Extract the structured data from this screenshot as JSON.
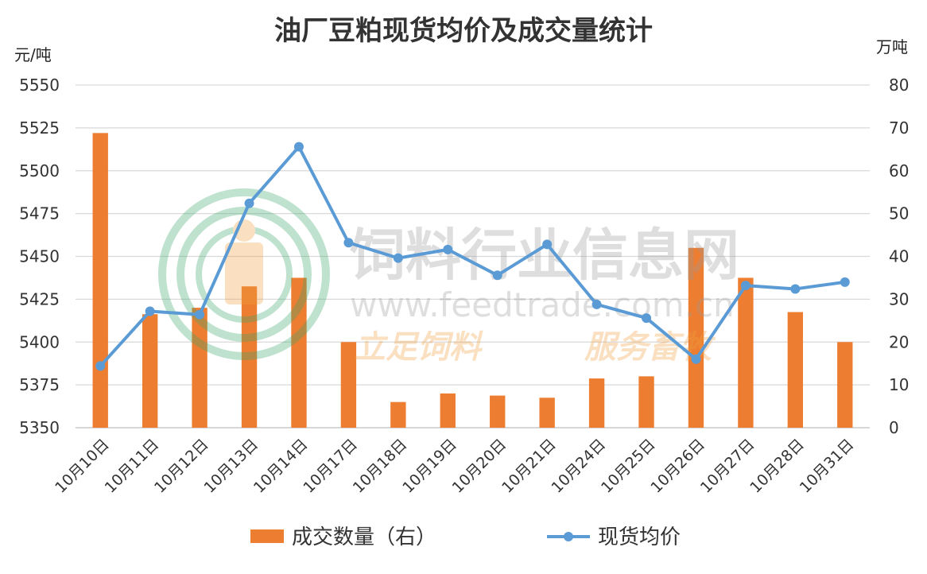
{
  "chart_data": {
    "type": "bar+line",
    "title": "油厂豆粕现货均价及成交量统计",
    "left_axis": {
      "unit": "元/吨",
      "min": 5350,
      "max": 5550,
      "ticks": [
        5550,
        5525,
        5500,
        5475,
        5450,
        5425,
        5400,
        5375,
        5350
      ]
    },
    "right_axis": {
      "unit": "万吨",
      "min": 0,
      "max": 80,
      "ticks": [
        80,
        70,
        60,
        50,
        40,
        30,
        20,
        10,
        0
      ]
    },
    "categories": [
      "10月10日",
      "10月11日",
      "10月12日",
      "10月13日",
      "10月14日",
      "10月17日",
      "10月18日",
      "10月19日",
      "10月20日",
      "10月21日",
      "10月24日",
      "10月25日",
      "10月26日",
      "10月27日",
      "10月28日",
      "10月31日"
    ],
    "series": [
      {
        "name": "成交数量（右）",
        "type": "bar",
        "axis": "right",
        "color": "#ED7D31",
        "values": [
          68.8,
          26.5,
          28.0,
          33.0,
          35.0,
          20.0,
          6.0,
          8.0,
          7.5,
          7.0,
          11.5,
          12.0,
          42.0,
          35.0,
          27.0,
          20.0
        ]
      },
      {
        "name": "现货均价",
        "type": "line",
        "axis": "left",
        "color": "#5B9BD5",
        "values": [
          5386,
          5418,
          5416,
          5481,
          5514,
          5458,
          5449,
          5454,
          5439,
          5457,
          5422,
          5414,
          5390,
          5433,
          5431,
          5435
        ]
      }
    ],
    "grid": true,
    "legend": "bottom"
  },
  "watermark": {
    "name": "饲料行业信息网",
    "url": "www.feedtrade.com.cn",
    "slogan_left": "立足饲料",
    "slogan_right": "服务畜牧"
  }
}
